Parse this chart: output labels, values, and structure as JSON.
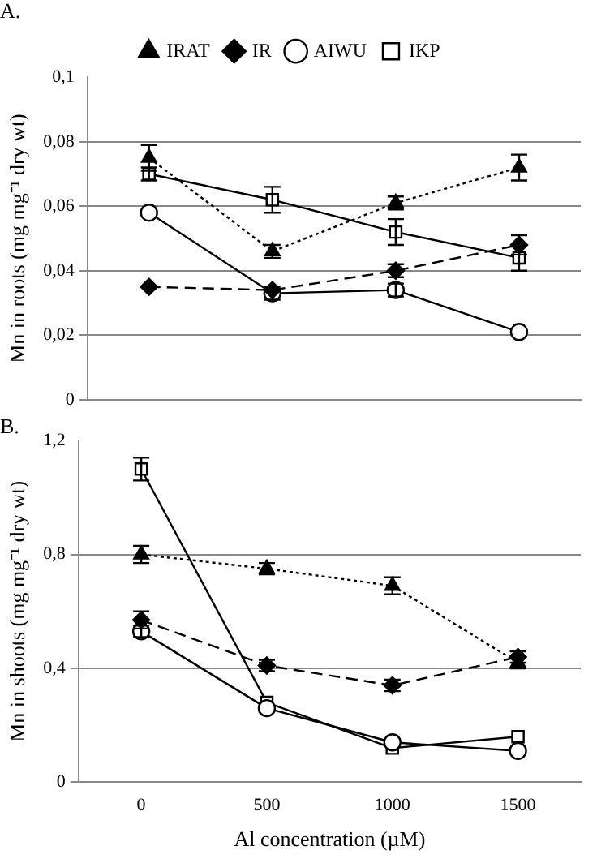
{
  "chart_data": [
    {
      "type": "line",
      "title": "A.",
      "ylabel": "Mn in roots (mg mg⁻¹ dry wt)",
      "categories": [
        "0",
        "500",
        "1000",
        "1500"
      ],
      "tick_labels": "y",
      "grid": "y",
      "legend": "top",
      "ylim": [
        0,
        0.1
      ],
      "yticks": [
        0,
        {
          "value": 0.02,
          "label": "0,02"
        },
        {
          "value": 0.04,
          "label": "0,04"
        },
        {
          "value": 0.06,
          "label": "0,06"
        },
        {
          "value": 0.08,
          "label": "0,08"
        },
        {
          "value": 0.1,
          "label": "0,1"
        }
      ],
      "series": [
        {
          "name": "IRAT",
          "color": "#000000",
          "marker": "triangle",
          "line_style": "dotted",
          "values": [
            0.075,
            0.046,
            0.061,
            0.072
          ],
          "errors": [
            0.004,
            0.002,
            0.002,
            0.004
          ]
        },
        {
          "name": "IR",
          "color": "#000000",
          "marker": "diamond",
          "line_style": "dashed",
          "values": [
            0.035,
            0.034,
            0.04,
            0.048
          ],
          "errors": [
            null,
            null,
            0.002,
            0.003
          ]
        },
        {
          "name": "AIWU",
          "color": "#000000",
          "marker": "circle",
          "line_style": "solid",
          "values": [
            0.058,
            0.033,
            0.034,
            0.021
          ],
          "errors": [
            null,
            0.002,
            0.002,
            null
          ]
        },
        {
          "name": "IKP",
          "color": "#000000",
          "marker": "square",
          "line_style": "solid",
          "values": [
            0.07,
            0.062,
            0.052,
            0.044
          ],
          "errors": [
            0.002,
            0.004,
            0.004,
            0.004
          ]
        }
      ]
    },
    {
      "type": "line",
      "title": "B.",
      "ylabel": "Mn in shoots (mg mg⁻¹ dry wt)",
      "xlabel": "Al concentration (µM)",
      "categories": [
        "0",
        "500",
        "1000",
        "1500"
      ],
      "grid": "y",
      "legend": false,
      "ylim": [
        0,
        1.2
      ],
      "yticks": [
        0,
        {
          "value": 0.4,
          "label": "0,4"
        },
        {
          "value": 0.8,
          "label": "0,8"
        },
        {
          "value": 1.2,
          "label": "1,2"
        }
      ],
      "series": [
        {
          "color": "#000000",
          "marker": "triangle",
          "line_style": "dotted",
          "values": [
            0.8,
            0.75,
            0.69,
            0.42
          ],
          "errors": [
            0.03,
            0.02,
            0.03,
            0.02
          ]
        },
        {
          "color": "#000000",
          "marker": "diamond",
          "line_style": "dashed",
          "values": [
            0.57,
            0.41,
            0.34,
            0.44
          ],
          "errors": [
            0.03,
            0.02,
            0.02,
            0.02
          ]
        },
        {
          "color": "#000000",
          "marker": "circle",
          "line_style": "solid",
          "values": [
            0.53,
            0.26,
            0.14,
            0.11
          ],
          "errors": [
            0.02,
            null,
            null,
            null
          ]
        },
        {
          "color": "#000000",
          "marker": "square",
          "line_style": "solid",
          "values": [
            1.1,
            0.28,
            0.12,
            0.16
          ],
          "errors": [
            0.04,
            null,
            null,
            null
          ]
        }
      ]
    }
  ]
}
